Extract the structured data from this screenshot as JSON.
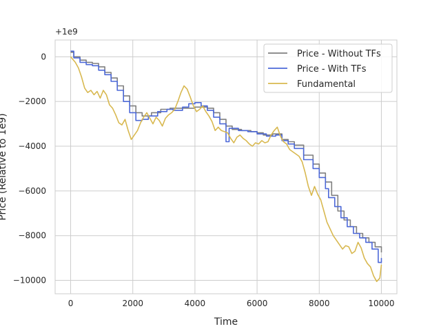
{
  "chart_data": {
    "type": "line",
    "title": "",
    "xlabel": "Time",
    "ylabel": "Price (Relative to 1e9)",
    "offset_label": "+1e9",
    "xlim": [
      -500,
      10500
    ],
    "ylim": [
      -10600,
      750
    ],
    "xticks": [
      0,
      2000,
      4000,
      6000,
      8000,
      10000
    ],
    "yticks": [
      0,
      -2000,
      -4000,
      -6000,
      -8000,
      -10000
    ],
    "xtick_labels": [
      "0",
      "2000",
      "4000",
      "6000",
      "8000",
      "10000"
    ],
    "ytick_labels": [
      "0",
      "−2000",
      "−4000",
      "−6000",
      "−8000",
      "−10000"
    ],
    "grid": true,
    "legend_position": "top-right",
    "series": [
      {
        "name": "Price - Without TFs",
        "color": "#7f7f7f",
        "step": true,
        "points": [
          [
            0,
            200
          ],
          [
            100,
            0
          ],
          [
            300,
            -150
          ],
          [
            500,
            -250
          ],
          [
            700,
            -300
          ],
          [
            900,
            -450
          ],
          [
            1100,
            -700
          ],
          [
            1300,
            -950
          ],
          [
            1500,
            -1300
          ],
          [
            1700,
            -1750
          ],
          [
            1900,
            -2200
          ],
          [
            2100,
            -2500
          ],
          [
            2300,
            -2650
          ],
          [
            2600,
            -2500
          ],
          [
            2900,
            -2350
          ],
          [
            3200,
            -2300
          ],
          [
            3500,
            -2300
          ],
          [
            3800,
            -2300
          ],
          [
            4000,
            -2250
          ],
          [
            4200,
            -2250
          ],
          [
            4400,
            -2300
          ],
          [
            4600,
            -2500
          ],
          [
            4800,
            -2800
          ],
          [
            5000,
            -3100
          ],
          [
            5200,
            -3250
          ],
          [
            5500,
            -3300
          ],
          [
            5800,
            -3350
          ],
          [
            6000,
            -3400
          ],
          [
            6200,
            -3500
          ],
          [
            6500,
            -3450
          ],
          [
            6800,
            -3700
          ],
          [
            7000,
            -3800
          ],
          [
            7200,
            -3950
          ],
          [
            7500,
            -4400
          ],
          [
            7800,
            -4800
          ],
          [
            8000,
            -5200
          ],
          [
            8200,
            -5600
          ],
          [
            8400,
            -6200
          ],
          [
            8600,
            -6900
          ],
          [
            8800,
            -7300
          ],
          [
            9000,
            -7600
          ],
          [
            9200,
            -7900
          ],
          [
            9400,
            -8100
          ],
          [
            9600,
            -8300
          ],
          [
            9800,
            -8500
          ],
          [
            10000,
            -8750
          ]
        ]
      },
      {
        "name": "Price - With TFs",
        "color": "#4c68d8",
        "step": true,
        "points": [
          [
            0,
            250
          ],
          [
            100,
            -50
          ],
          [
            300,
            -250
          ],
          [
            500,
            -350
          ],
          [
            700,
            -400
          ],
          [
            900,
            -600
          ],
          [
            1100,
            -800
          ],
          [
            1300,
            -1100
          ],
          [
            1500,
            -1500
          ],
          [
            1700,
            -2000
          ],
          [
            1900,
            -2500
          ],
          [
            2100,
            -2850
          ],
          [
            2300,
            -2800
          ],
          [
            2500,
            -2650
          ],
          [
            2800,
            -2450
          ],
          [
            3100,
            -2350
          ],
          [
            3300,
            -2400
          ],
          [
            3600,
            -2250
          ],
          [
            3800,
            -2100
          ],
          [
            4000,
            -2050
          ],
          [
            4200,
            -2200
          ],
          [
            4400,
            -2400
          ],
          [
            4600,
            -2700
          ],
          [
            4800,
            -3000
          ],
          [
            5000,
            -3800
          ],
          [
            5100,
            -3200
          ],
          [
            5400,
            -3300
          ],
          [
            5700,
            -3350
          ],
          [
            6000,
            -3450
          ],
          [
            6300,
            -3550
          ],
          [
            6600,
            -3500
          ],
          [
            6800,
            -3750
          ],
          [
            7000,
            -3900
          ],
          [
            7200,
            -4100
          ],
          [
            7500,
            -4600
          ],
          [
            7800,
            -5000
          ],
          [
            8000,
            -5400
          ],
          [
            8200,
            -5900
          ],
          [
            8300,
            -6300
          ],
          [
            8500,
            -6700
          ],
          [
            8700,
            -7200
          ],
          [
            8900,
            -7600
          ],
          [
            9100,
            -7900
          ],
          [
            9300,
            -8100
          ],
          [
            9500,
            -8300
          ],
          [
            9700,
            -8600
          ],
          [
            9900,
            -9200
          ],
          [
            10000,
            -9000
          ]
        ]
      },
      {
        "name": "Fundamental",
        "color": "#d8b84f",
        "step": false,
        "points": [
          [
            0,
            0
          ],
          [
            150,
            -250
          ],
          [
            250,
            -500
          ],
          [
            350,
            -900
          ],
          [
            450,
            -1400
          ],
          [
            550,
            -1600
          ],
          [
            650,
            -1500
          ],
          [
            750,
            -1700
          ],
          [
            850,
            -1550
          ],
          [
            950,
            -1850
          ],
          [
            1050,
            -1500
          ],
          [
            1150,
            -1700
          ],
          [
            1250,
            -2150
          ],
          [
            1350,
            -2300
          ],
          [
            1450,
            -2600
          ],
          [
            1550,
            -2950
          ],
          [
            1650,
            -3050
          ],
          [
            1750,
            -2800
          ],
          [
            1850,
            -3300
          ],
          [
            1950,
            -3700
          ],
          [
            2050,
            -3500
          ],
          [
            2150,
            -3300
          ],
          [
            2250,
            -2950
          ],
          [
            2350,
            -2700
          ],
          [
            2450,
            -2500
          ],
          [
            2550,
            -2750
          ],
          [
            2650,
            -3000
          ],
          [
            2750,
            -2700
          ],
          [
            2850,
            -2850
          ],
          [
            2950,
            -3100
          ],
          [
            3050,
            -2750
          ],
          [
            3150,
            -2600
          ],
          [
            3250,
            -2500
          ],
          [
            3350,
            -2350
          ],
          [
            3450,
            -2000
          ],
          [
            3550,
            -1600
          ],
          [
            3650,
            -1300
          ],
          [
            3750,
            -1450
          ],
          [
            3850,
            -1800
          ],
          [
            3950,
            -2200
          ],
          [
            4050,
            -2450
          ],
          [
            4150,
            -2350
          ],
          [
            4250,
            -2200
          ],
          [
            4350,
            -2450
          ],
          [
            4450,
            -2650
          ],
          [
            4550,
            -2900
          ],
          [
            4650,
            -3300
          ],
          [
            4750,
            -3150
          ],
          [
            4850,
            -3300
          ],
          [
            4950,
            -3350
          ],
          [
            5050,
            -3400
          ],
          [
            5150,
            -3650
          ],
          [
            5250,
            -3850
          ],
          [
            5350,
            -3600
          ],
          [
            5450,
            -3500
          ],
          [
            5550,
            -3650
          ],
          [
            5650,
            -3750
          ],
          [
            5750,
            -3900
          ],
          [
            5850,
            -4000
          ],
          [
            5950,
            -3850
          ],
          [
            6050,
            -3900
          ],
          [
            6150,
            -3750
          ],
          [
            6250,
            -3850
          ],
          [
            6350,
            -3800
          ],
          [
            6450,
            -3500
          ],
          [
            6550,
            -3300
          ],
          [
            6650,
            -3150
          ],
          [
            6750,
            -3550
          ],
          [
            6850,
            -3800
          ],
          [
            6950,
            -3900
          ],
          [
            7050,
            -4150
          ],
          [
            7150,
            -4250
          ],
          [
            7250,
            -4350
          ],
          [
            7350,
            -4450
          ],
          [
            7450,
            -4700
          ],
          [
            7550,
            -5200
          ],
          [
            7650,
            -5800
          ],
          [
            7750,
            -6200
          ],
          [
            7850,
            -5800
          ],
          [
            7950,
            -6150
          ],
          [
            8050,
            -6400
          ],
          [
            8150,
            -6900
          ],
          [
            8250,
            -7400
          ],
          [
            8350,
            -7700
          ],
          [
            8450,
            -8000
          ],
          [
            8550,
            -8200
          ],
          [
            8650,
            -8400
          ],
          [
            8750,
            -8600
          ],
          [
            8850,
            -8450
          ],
          [
            8950,
            -8500
          ],
          [
            9050,
            -8800
          ],
          [
            9150,
            -8700
          ],
          [
            9250,
            -8300
          ],
          [
            9350,
            -8550
          ],
          [
            9450,
            -9000
          ],
          [
            9550,
            -9250
          ],
          [
            9650,
            -9400
          ],
          [
            9750,
            -9800
          ],
          [
            9850,
            -10050
          ],
          [
            9950,
            -9900
          ],
          [
            10000,
            -9300
          ]
        ]
      }
    ]
  }
}
